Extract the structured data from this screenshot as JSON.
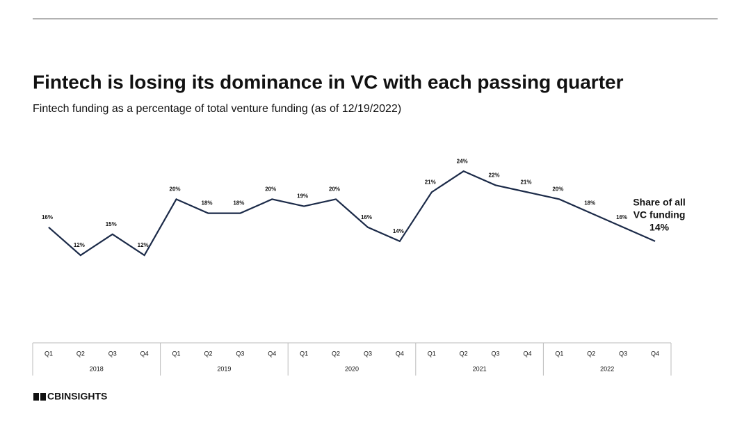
{
  "chart_data": {
    "type": "line",
    "title": "Fintech is losing its dominance in VC with each passing quarter",
    "subtitle": "Fintech funding as a percentage of total venture funding (as of 12/19/2022)",
    "categories": [
      "Q1",
      "Q2",
      "Q3",
      "Q4",
      "Q1",
      "Q2",
      "Q3",
      "Q4",
      "Q1",
      "Q2",
      "Q3",
      "Q4",
      "Q1",
      "Q2",
      "Q3",
      "Q4",
      "Q1",
      "Q2",
      "Q3",
      "Q4"
    ],
    "year_groups": [
      "2018",
      "2019",
      "2020",
      "2021",
      "2022"
    ],
    "series": [
      {
        "name": "Share of all VC funding",
        "color": "#1b2a48",
        "values": [
          16,
          12,
          15,
          12,
          20,
          18,
          18,
          20,
          19,
          20,
          16,
          14,
          21,
          24,
          22,
          21,
          20,
          18,
          16,
          14
        ],
        "value_labels": [
          "16%",
          "12%",
          "15%",
          "12%",
          "20%",
          "18%",
          "18%",
          "20%",
          "19%",
          "20%",
          "16%",
          "14%",
          "21%",
          "24%",
          "22%",
          "21%",
          "20%",
          "18%",
          "16%",
          "14%"
        ]
      }
    ],
    "annotation": [
      "Share of all",
      "VC funding"
    ],
    "ylim": [
      0,
      26
    ],
    "source": "CBINSIGHTS"
  }
}
